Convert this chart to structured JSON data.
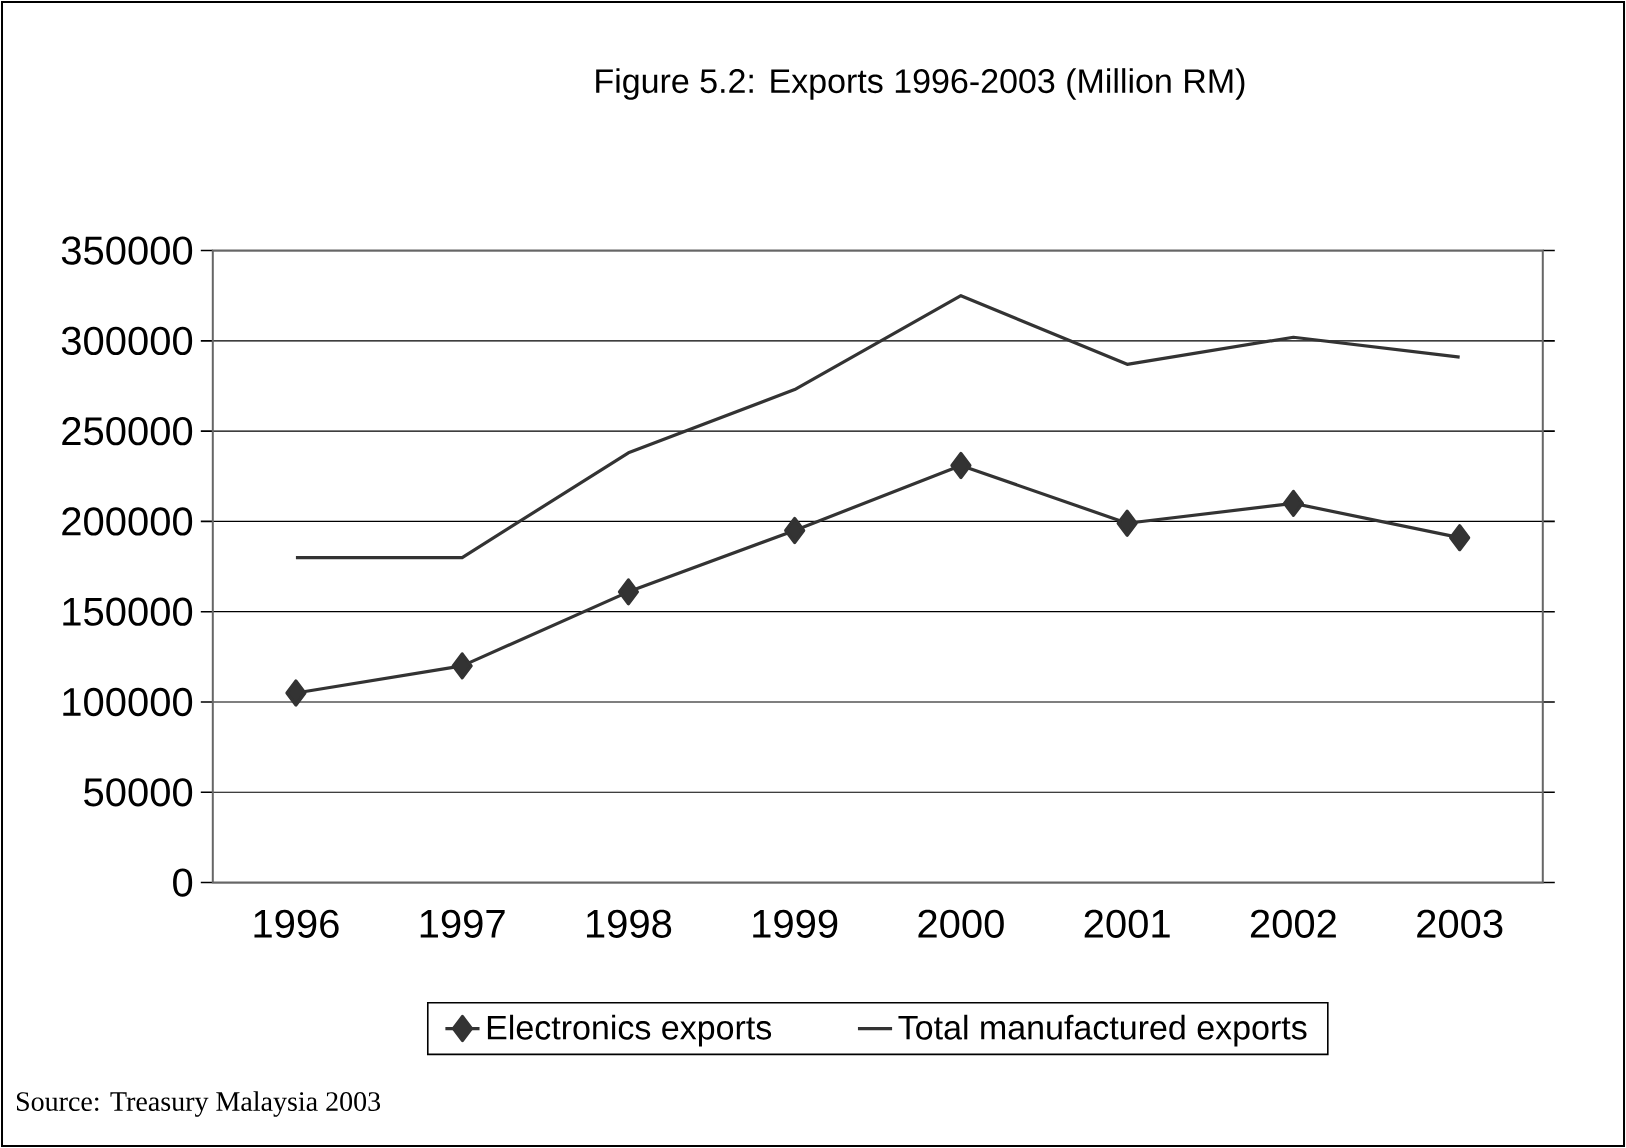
{
  "chart_data": {
    "type": "line",
    "title": "Figure 5.2: Exports 1996-2003 (Million RM)",
    "categories": [
      "1996",
      "1997",
      "1998",
      "1999",
      "2000",
      "2001",
      "2002",
      "2003"
    ],
    "series": [
      {
        "name": "Electronics exports",
        "color": "#333333",
        "marker": "diamond",
        "values": [
          105000,
          120000,
          161000,
          195000,
          231000,
          199000,
          210000,
          191000
        ]
      },
      {
        "name": "Total manufactured exports",
        "color": "#333333",
        "marker": "none",
        "values": [
          180000,
          180000,
          238000,
          273000,
          325000,
          287000,
          302000,
          291000
        ]
      }
    ],
    "ylim": [
      0,
      350000
    ],
    "yticks": [
      0,
      50000,
      100000,
      150000,
      200000,
      250000,
      300000,
      350000
    ],
    "grid": "y",
    "legend": "bottom",
    "annotations": [
      "Source: Treasury Malaysia 2003"
    ]
  }
}
